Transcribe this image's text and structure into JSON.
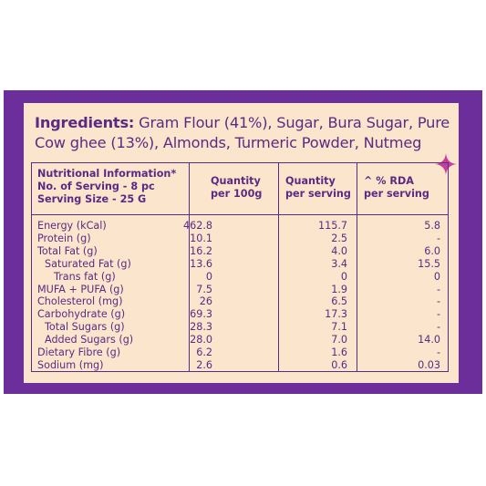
{
  "ingredients": {
    "heading": "Ingredients:",
    "text": " Gram Flour (41%), Sugar, Bura Sugar, Pure Cow ghee (13%), Almonds, Turmeric Powder, Nutmeg"
  },
  "table": {
    "header": {
      "col0": [
        "Nutritional Information*",
        "No. of Serving - 8 pc",
        "Serving Size - 25 G"
      ],
      "col1": [
        "Quantity",
        "per 100g"
      ],
      "col2": [
        "Quantity",
        "per serving"
      ],
      "col3": [
        "^ % RDA",
        "per serving"
      ]
    },
    "rows": [
      {
        "label": "Energy (kCal)",
        "indent": 0,
        "per100": "462.8",
        "serving": "115.7",
        "rda": "5.8"
      },
      {
        "label": "Protein (g)",
        "indent": 0,
        "per100": "10.1",
        "serving": "2.5",
        "rda": "-"
      },
      {
        "label": "Total Fat (g)",
        "indent": 0,
        "per100": "16.2",
        "serving": "4.0",
        "rda": "6.0"
      },
      {
        "label": "Saturated Fat (g)",
        "indent": 1,
        "per100": "13.6",
        "serving": "3.4",
        "rda": "15.5"
      },
      {
        "label": "Trans fat (g)",
        "indent": 2,
        "per100": "0",
        "serving": "0",
        "rda": "0"
      },
      {
        "label": "MUFA + PUFA (g)",
        "indent": 0,
        "per100": "7.5",
        "serving": "1.9",
        "rda": "-"
      },
      {
        "label": "Cholesterol (mg)",
        "indent": 0,
        "per100": "26",
        "serving": "6.5",
        "rda": "-"
      },
      {
        "label": "Carbohydrate (g)",
        "indent": 0,
        "per100": "69.3",
        "serving": "17.3",
        "rda": "-"
      },
      {
        "label": "Total Sugars (g)",
        "indent": 1,
        "per100": "28.3",
        "serving": "7.1",
        "rda": "-"
      },
      {
        "label": "Added Sugars (g)",
        "indent": 1,
        "per100": "28.0",
        "serving": "7.0",
        "rda": "14.0"
      },
      {
        "label": "Dietary Fibre (g)",
        "indent": 0,
        "per100": "6.2",
        "serving": "1.6",
        "rda": "-"
      },
      {
        "label": "Sodium (mg)",
        "indent": 0,
        "per100": "2.6",
        "serving": "0.6",
        "rda": "0.03"
      }
    ]
  },
  "colors": {
    "frame": "#6b2e9a",
    "card": "#fbe5cc",
    "text": "#5b2a82",
    "sparkle": "#c2409a"
  },
  "icons": {
    "sparkle": "four-point-star-icon"
  }
}
